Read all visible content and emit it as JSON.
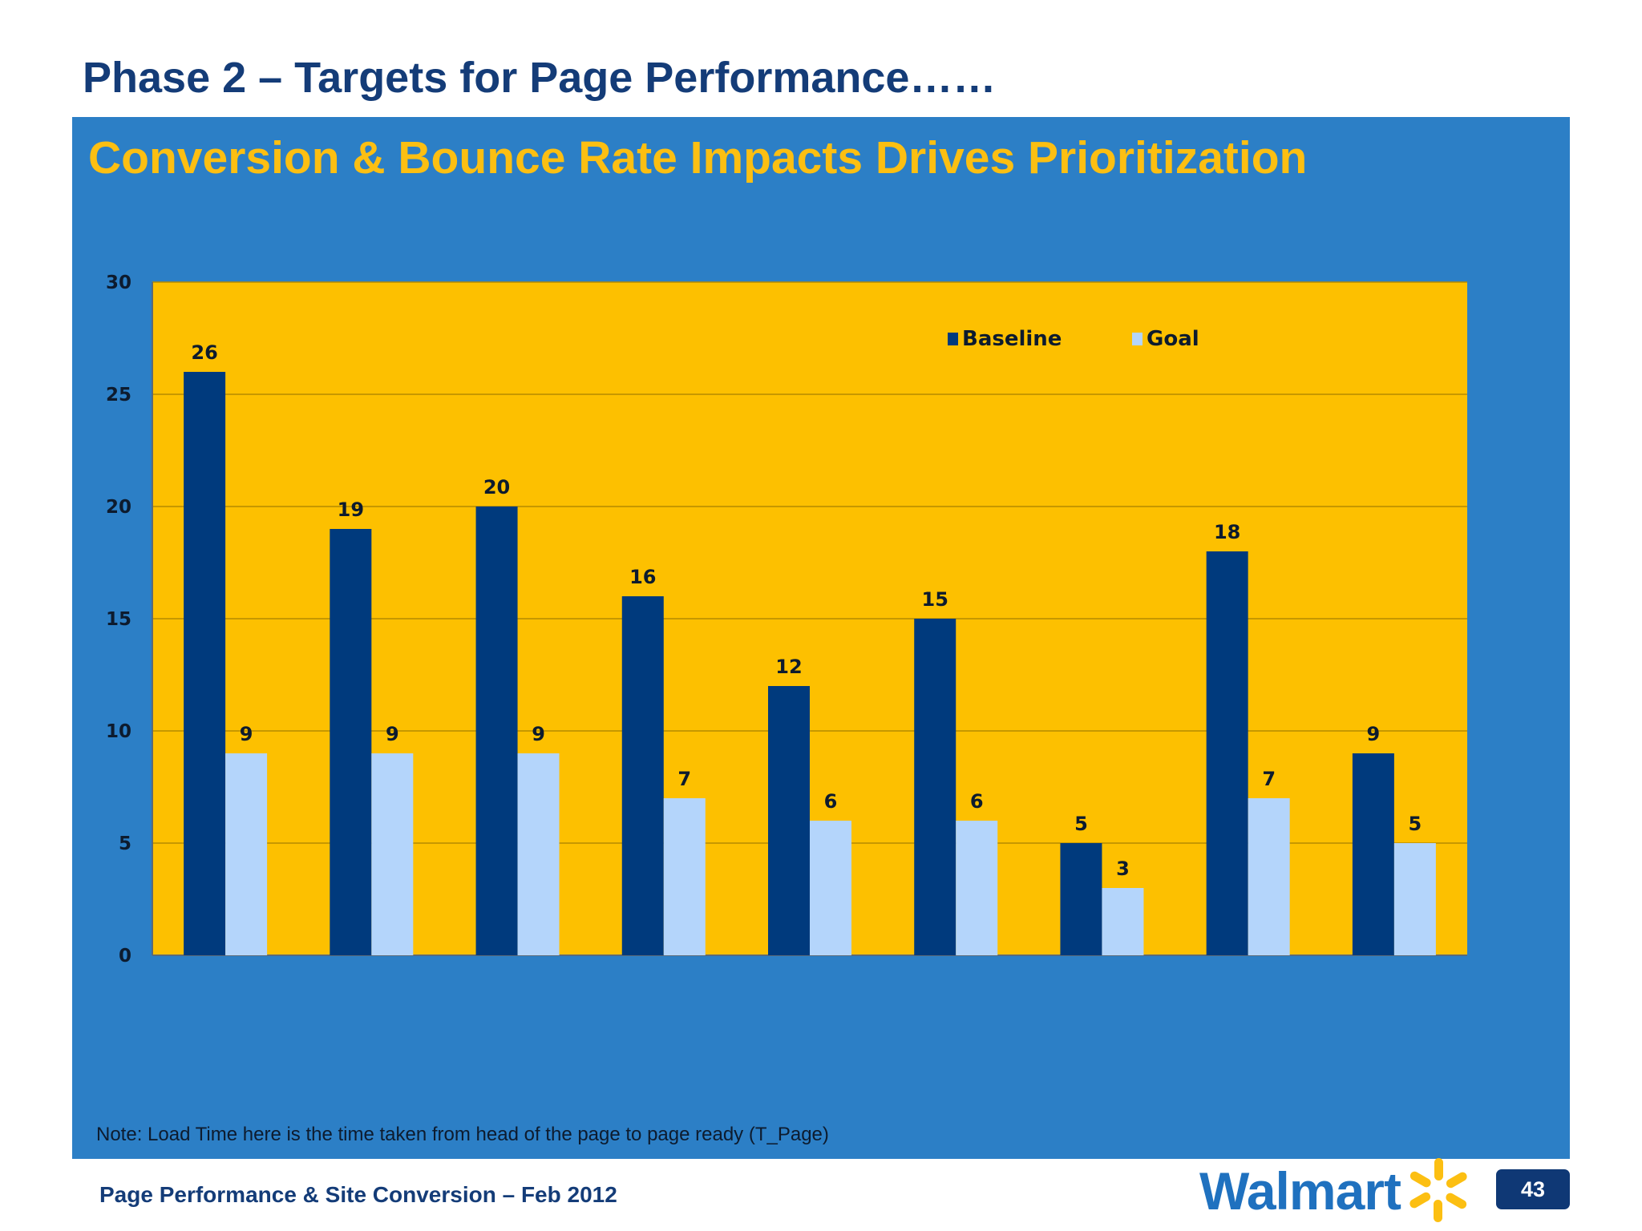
{
  "page": {
    "title": "Phase 2 – Targets for Page Performance……",
    "subtitle": "Conversion & Bounce Rate Impacts Drives Prioritization",
    "note": "Note: Load Time here is the time taken from head of the page to page ready (T_Page)",
    "footer": "Page Performance & Site Conversion – Feb 2012",
    "logo_text": "Walmart",
    "page_number": "43"
  },
  "colors": {
    "title": "#143c78",
    "subtitle": "#fcbf12",
    "panel": "#2c7fc6",
    "plot_area": "#fdc000",
    "baseline": "#003a7d",
    "goal": "#b4d5fb",
    "logo_spark": "#fcbf12"
  },
  "chart_data": {
    "type": "bar",
    "categories": [
      "",
      "",
      "",
      "",
      "",
      "",
      "",
      "",
      ""
    ],
    "series": [
      {
        "name": "Baseline",
        "values": [
          26,
          19,
          20,
          16,
          12,
          15,
          5,
          18,
          9
        ]
      },
      {
        "name": "Goal",
        "values": [
          9,
          9,
          9,
          7,
          6,
          6,
          3,
          7,
          5
        ]
      }
    ],
    "title": "",
    "xlabel": "",
    "ylabel": "",
    "ylim": [
      0,
      30
    ],
    "yticks": [
      0,
      5,
      10,
      15,
      20,
      25,
      30
    ],
    "grid": true,
    "legend": "top-right",
    "data_labels": true
  }
}
